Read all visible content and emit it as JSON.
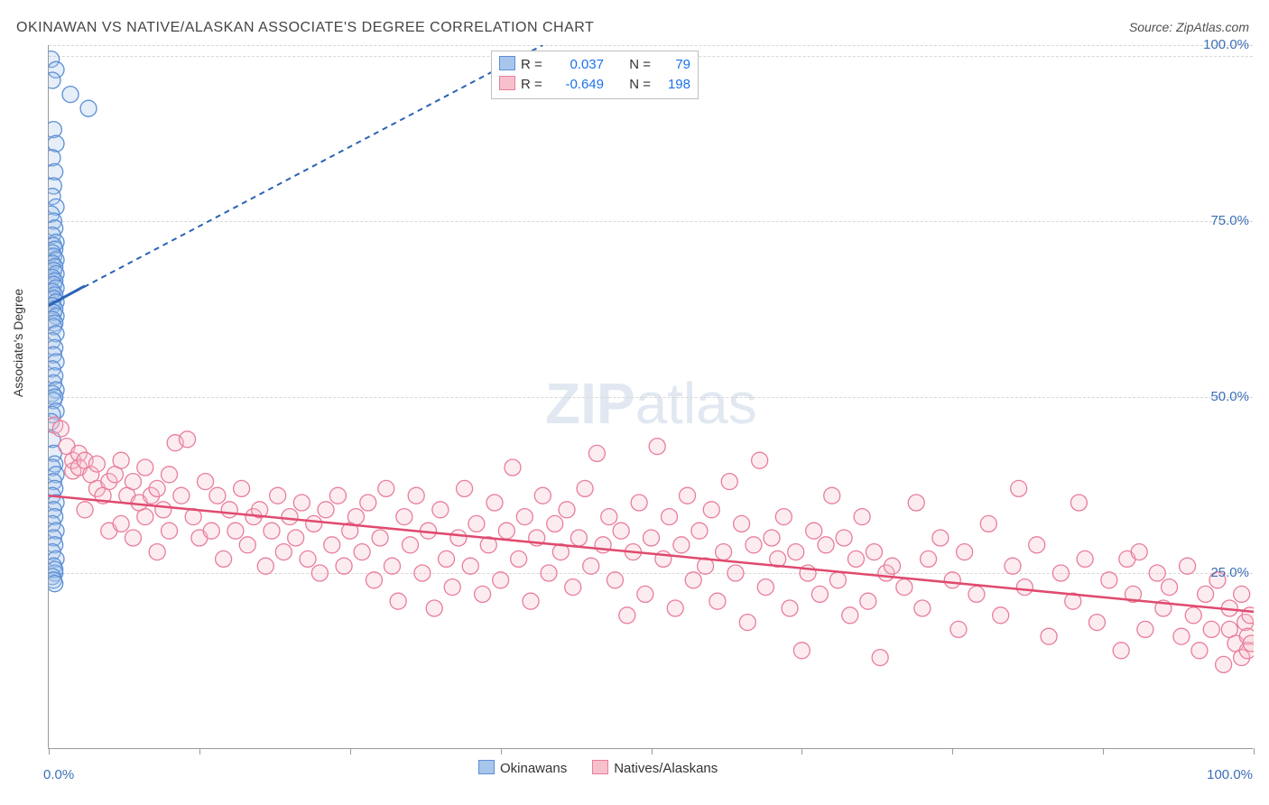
{
  "chart": {
    "type": "scatter",
    "title": "OKINAWAN VS NATIVE/ALASKAN ASSOCIATE'S DEGREE CORRELATION CHART",
    "source_label": "Source: ZipAtlas.com",
    "y_axis_label": "Associate's Degree",
    "background_color": "#ffffff",
    "grid_color": "#d7d7d7",
    "axis_color": "#9a9a9a",
    "text_color": "#444444",
    "tick_label_color": "#3b6fb6",
    "xlim": [
      0,
      100
    ],
    "ylim": [
      0,
      100
    ],
    "y_ticks": [
      25,
      50,
      75,
      100
    ],
    "y_tick_labels": [
      "25.0%",
      "50.0%",
      "75.0%",
      "100.0%"
    ],
    "x_ticks": [
      0,
      12.5,
      25,
      37.5,
      50,
      62.5,
      75,
      87.5,
      100
    ],
    "x_end_labels": [
      "0.0%",
      "100.0%"
    ],
    "marker_radius": 9,
    "marker_fill_opacity": 0.3,
    "marker_stroke_width": 1.3,
    "watermark": {
      "text_bold": "ZIP",
      "text_light": "atlas",
      "color": "#cbd7e6",
      "fontsize": 64
    },
    "legend_top": {
      "rows": [
        {
          "swatch_fill": "#a8c6ec",
          "swatch_stroke": "#5b8fd6",
          "r_label": "R =",
          "r_value": "0.037",
          "n_label": "N =",
          "n_value": "79"
        },
        {
          "swatch_fill": "#f6c1cd",
          "swatch_stroke": "#e97d9a",
          "r_label": "R =",
          "r_value": "-0.649",
          "n_label": "N =",
          "n_value": "198"
        }
      ]
    },
    "legend_bottom": {
      "items": [
        {
          "swatch_fill": "#a8c6ec",
          "swatch_stroke": "#5b8fd6",
          "label": "Okinawans"
        },
        {
          "swatch_fill": "#f6c1cd",
          "swatch_stroke": "#e97d9a",
          "label": "Natives/Alaskans"
        }
      ]
    },
    "series": [
      {
        "name": "Okinawans",
        "color_fill": "#a8c6ec",
        "color_stroke": "#5b8fd6",
        "trend_line": {
          "color": "#2b63b5",
          "width": 2,
          "dash": "6,5",
          "x1": 0,
          "y1": 63,
          "x2": 41,
          "y2": 100
        },
        "points": [
          [
            0.2,
            98.0
          ],
          [
            0.6,
            96.5
          ],
          [
            0.3,
            95.0
          ],
          [
            3.3,
            91.0
          ],
          [
            1.8,
            93.0
          ],
          [
            0.4,
            88.0
          ],
          [
            0.6,
            86.0
          ],
          [
            0.3,
            84.0
          ],
          [
            0.5,
            82.0
          ],
          [
            0.4,
            80.0
          ],
          [
            0.3,
            78.5
          ],
          [
            0.6,
            77.0
          ],
          [
            0.2,
            76.0
          ],
          [
            0.4,
            75.0
          ],
          [
            0.5,
            74.0
          ],
          [
            0.3,
            73.0
          ],
          [
            0.6,
            72.0
          ],
          [
            0.4,
            71.5
          ],
          [
            0.5,
            71.0
          ],
          [
            0.3,
            70.5
          ],
          [
            0.4,
            70.0
          ],
          [
            0.6,
            69.5
          ],
          [
            0.3,
            69.0
          ],
          [
            0.5,
            68.5
          ],
          [
            0.4,
            68.0
          ],
          [
            0.6,
            67.5
          ],
          [
            0.3,
            67.0
          ],
          [
            0.5,
            66.5
          ],
          [
            0.4,
            66.0
          ],
          [
            0.6,
            65.5
          ],
          [
            0.3,
            65.0
          ],
          [
            0.5,
            64.5
          ],
          [
            0.4,
            64.0
          ],
          [
            0.6,
            63.5
          ],
          [
            0.3,
            63.0
          ],
          [
            0.5,
            62.5
          ],
          [
            0.4,
            62.0
          ],
          [
            0.6,
            61.5
          ],
          [
            0.3,
            61.0
          ],
          [
            0.5,
            60.5
          ],
          [
            0.4,
            60.0
          ],
          [
            0.6,
            59.0
          ],
          [
            0.3,
            58.0
          ],
          [
            0.5,
            57.0
          ],
          [
            0.4,
            56.0
          ],
          [
            0.6,
            55.0
          ],
          [
            0.3,
            54.0
          ],
          [
            0.5,
            53.0
          ],
          [
            0.4,
            52.0
          ],
          [
            0.6,
            51.0
          ],
          [
            0.3,
            50.5
          ],
          [
            0.5,
            50.0
          ],
          [
            0.4,
            49.5
          ],
          [
            0.6,
            48.0
          ],
          [
            0.3,
            47.5
          ],
          [
            0.2,
            46.5
          ],
          [
            0.3,
            44.0
          ],
          [
            0.4,
            42.0
          ],
          [
            0.5,
            40.5
          ],
          [
            0.3,
            40.0
          ],
          [
            0.6,
            39.0
          ],
          [
            0.4,
            38.0
          ],
          [
            0.5,
            37.0
          ],
          [
            0.3,
            36.0
          ],
          [
            0.6,
            35.0
          ],
          [
            0.4,
            34.0
          ],
          [
            0.5,
            33.0
          ],
          [
            0.3,
            32.0
          ],
          [
            0.6,
            31.0
          ],
          [
            0.4,
            30.0
          ],
          [
            0.5,
            29.0
          ],
          [
            0.3,
            28.0
          ],
          [
            0.6,
            27.0
          ],
          [
            0.4,
            26.0
          ],
          [
            0.5,
            25.0
          ],
          [
            0.5,
            25.5
          ],
          [
            0.3,
            24.5
          ],
          [
            0.4,
            24.0
          ],
          [
            0.5,
            23.5
          ]
        ]
      },
      {
        "name": "Natives/Alaskans",
        "color_fill": "#f6c1cd",
        "color_stroke": "#e97d9a",
        "trend_line": {
          "color": "#e04a6e",
          "width": 2.5,
          "dash": "none",
          "x1": 0,
          "y1": 36.0,
          "x2": 100,
          "y2": 19.5
        },
        "points": [
          [
            0.5,
            46.0
          ],
          [
            1.0,
            45.5
          ],
          [
            1.5,
            43.0
          ],
          [
            2.0,
            39.5
          ],
          [
            2.0,
            41.0
          ],
          [
            2.5,
            42.0
          ],
          [
            2.5,
            40.0
          ],
          [
            3.0,
            41.0
          ],
          [
            3.0,
            34.0
          ],
          [
            3.5,
            39.0
          ],
          [
            4.0,
            40.5
          ],
          [
            4.0,
            37.0
          ],
          [
            4.5,
            36.0
          ],
          [
            5.0,
            38.0
          ],
          [
            5.0,
            31.0
          ],
          [
            5.5,
            39.0
          ],
          [
            6.0,
            41.0
          ],
          [
            6.0,
            32.0
          ],
          [
            6.5,
            36.0
          ],
          [
            7.0,
            38.0
          ],
          [
            7.0,
            30.0
          ],
          [
            7.5,
            35.0
          ],
          [
            8.0,
            40.0
          ],
          [
            8.0,
            33.0
          ],
          [
            8.5,
            36.0
          ],
          [
            9.0,
            37.0
          ],
          [
            9.0,
            28.0
          ],
          [
            9.5,
            34.0
          ],
          [
            10.0,
            39.0
          ],
          [
            10.0,
            31.0
          ],
          [
            10.5,
            43.5
          ],
          [
            11.0,
            36.0
          ],
          [
            11.5,
            44.0
          ],
          [
            12.0,
            33.0
          ],
          [
            12.5,
            30.0
          ],
          [
            13.0,
            38.0
          ],
          [
            13.5,
            31.0
          ],
          [
            14.0,
            36.0
          ],
          [
            14.5,
            27.0
          ],
          [
            15.0,
            34.0
          ],
          [
            15.5,
            31.0
          ],
          [
            16.0,
            37.0
          ],
          [
            16.5,
            29.0
          ],
          [
            17.0,
            33.0
          ],
          [
            17.5,
            34.0
          ],
          [
            18.0,
            26.0
          ],
          [
            18.5,
            31.0
          ],
          [
            19.0,
            36.0
          ],
          [
            19.5,
            28.0
          ],
          [
            20.0,
            33.0
          ],
          [
            20.5,
            30.0
          ],
          [
            21.0,
            35.0
          ],
          [
            21.5,
            27.0
          ],
          [
            22.0,
            32.0
          ],
          [
            22.5,
            25.0
          ],
          [
            23.0,
            34.0
          ],
          [
            23.5,
            29.0
          ],
          [
            24.0,
            36.0
          ],
          [
            24.5,
            26.0
          ],
          [
            25.0,
            31.0
          ],
          [
            25.5,
            33.0
          ],
          [
            26.0,
            28.0
          ],
          [
            26.5,
            35.0
          ],
          [
            27.0,
            24.0
          ],
          [
            27.5,
            30.0
          ],
          [
            28.0,
            37.0
          ],
          [
            28.5,
            26.0
          ],
          [
            29.0,
            21.0
          ],
          [
            29.5,
            33.0
          ],
          [
            30.0,
            29.0
          ],
          [
            30.5,
            36.0
          ],
          [
            31.0,
            25.0
          ],
          [
            31.5,
            31.0
          ],
          [
            32.0,
            20.0
          ],
          [
            32.5,
            34.0
          ],
          [
            33.0,
            27.0
          ],
          [
            33.5,
            23.0
          ],
          [
            34.0,
            30.0
          ],
          [
            34.5,
            37.0
          ],
          [
            35.0,
            26.0
          ],
          [
            35.5,
            32.0
          ],
          [
            36.0,
            22.0
          ],
          [
            36.5,
            29.0
          ],
          [
            37.0,
            35.0
          ],
          [
            37.5,
            24.0
          ],
          [
            38.0,
            31.0
          ],
          [
            38.5,
            40.0
          ],
          [
            39.0,
            27.0
          ],
          [
            39.5,
            33.0
          ],
          [
            40.0,
            21.0
          ],
          [
            40.5,
            30.0
          ],
          [
            41.0,
            36.0
          ],
          [
            41.5,
            25.0
          ],
          [
            42.0,
            32.0
          ],
          [
            42.5,
            28.0
          ],
          [
            43.0,
            34.0
          ],
          [
            43.5,
            23.0
          ],
          [
            44.0,
            30.0
          ],
          [
            44.5,
            37.0
          ],
          [
            45.0,
            26.0
          ],
          [
            45.5,
            42.0
          ],
          [
            46.0,
            29.0
          ],
          [
            46.5,
            33.0
          ],
          [
            47.0,
            24.0
          ],
          [
            47.5,
            31.0
          ],
          [
            48.0,
            19.0
          ],
          [
            48.5,
            28.0
          ],
          [
            49.0,
            35.0
          ],
          [
            49.5,
            22.0
          ],
          [
            50.0,
            30.0
          ],
          [
            50.5,
            43.0
          ],
          [
            51.0,
            27.0
          ],
          [
            51.5,
            33.0
          ],
          [
            52.0,
            20.0
          ],
          [
            52.5,
            29.0
          ],
          [
            53.0,
            36.0
          ],
          [
            53.5,
            24.0
          ],
          [
            54.0,
            31.0
          ],
          [
            54.5,
            26.0
          ],
          [
            55.0,
            34.0
          ],
          [
            55.5,
            21.0
          ],
          [
            56.0,
            28.0
          ],
          [
            56.5,
            38.0
          ],
          [
            57.0,
            25.0
          ],
          [
            57.5,
            32.0
          ],
          [
            58.0,
            18.0
          ],
          [
            58.5,
            29.0
          ],
          [
            59.0,
            41.0
          ],
          [
            59.5,
            23.0
          ],
          [
            60.0,
            30.0
          ],
          [
            60.5,
            27.0
          ],
          [
            61.0,
            33.0
          ],
          [
            61.5,
            20.0
          ],
          [
            62.0,
            28.0
          ],
          [
            62.5,
            14.0
          ],
          [
            63.0,
            25.0
          ],
          [
            63.5,
            31.0
          ],
          [
            64.0,
            22.0
          ],
          [
            64.5,
            29.0
          ],
          [
            65.0,
            36.0
          ],
          [
            65.5,
            24.0
          ],
          [
            66.0,
            30.0
          ],
          [
            66.5,
            19.0
          ],
          [
            67.0,
            27.0
          ],
          [
            67.5,
            33.0
          ],
          [
            68.0,
            21.0
          ],
          [
            68.5,
            28.0
          ],
          [
            69.0,
            13.0
          ],
          [
            69.5,
            25.0
          ],
          [
            70.0,
            26.0
          ],
          [
            71.0,
            23.0
          ],
          [
            72.0,
            35.0
          ],
          [
            72.5,
            20.0
          ],
          [
            73.0,
            27.0
          ],
          [
            74.0,
            30.0
          ],
          [
            75.0,
            24.0
          ],
          [
            75.5,
            17.0
          ],
          [
            76.0,
            28.0
          ],
          [
            77.0,
            22.0
          ],
          [
            78.0,
            32.0
          ],
          [
            79.0,
            19.0
          ],
          [
            80.0,
            26.0
          ],
          [
            80.5,
            37.0
          ],
          [
            81.0,
            23.0
          ],
          [
            82.0,
            29.0
          ],
          [
            83.0,
            16.0
          ],
          [
            84.0,
            25.0
          ],
          [
            85.0,
            21.0
          ],
          [
            85.5,
            35.0
          ],
          [
            86.0,
            27.0
          ],
          [
            87.0,
            18.0
          ],
          [
            88.0,
            24.0
          ],
          [
            89.0,
            14.0
          ],
          [
            89.5,
            27.0
          ],
          [
            90.0,
            22.0
          ],
          [
            90.5,
            28.0
          ],
          [
            91.0,
            17.0
          ],
          [
            92.0,
            25.0
          ],
          [
            92.5,
            20.0
          ],
          [
            93.0,
            23.0
          ],
          [
            94.0,
            16.0
          ],
          [
            94.5,
            26.0
          ],
          [
            95.0,
            19.0
          ],
          [
            95.5,
            14.0
          ],
          [
            96.0,
            22.0
          ],
          [
            96.5,
            17.0
          ],
          [
            97.0,
            24.0
          ],
          [
            97.5,
            12.0
          ],
          [
            98.0,
            20.0
          ],
          [
            98.0,
            17.0
          ],
          [
            98.5,
            15.0
          ],
          [
            99.0,
            22.0
          ],
          [
            99.0,
            13.0
          ],
          [
            99.3,
            18.0
          ],
          [
            99.5,
            16.0
          ],
          [
            99.5,
            14.0
          ],
          [
            99.7,
            19.0
          ],
          [
            99.8,
            15.0
          ]
        ]
      }
    ]
  }
}
